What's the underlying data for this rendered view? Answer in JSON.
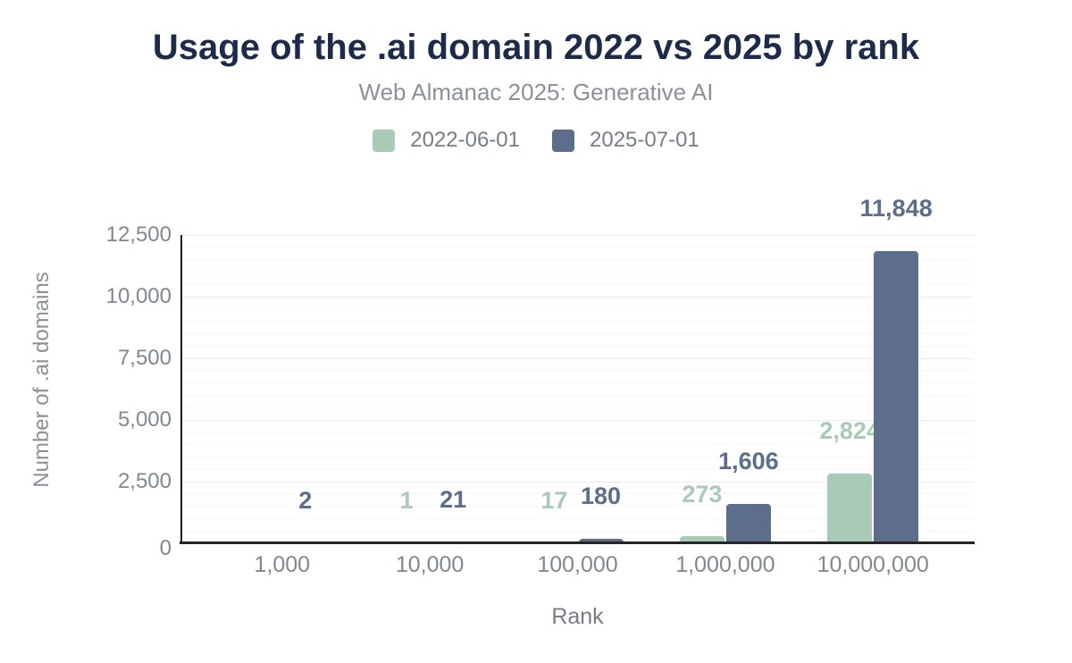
{
  "title": "Usage of the .ai domain 2022 vs 2025 by rank",
  "subtitle": "Web Almanac 2025: Generative AI",
  "legend": [
    {
      "label": "2022-06-01",
      "color": "#a9cab7"
    },
    {
      "label": "2025-07-01",
      "color": "#5c6e8b"
    }
  ],
  "colors": {
    "title": "#1c2b4a",
    "subtitle": "#8a9199",
    "axis_text": "#80888f",
    "series_2022": "#a9cab7",
    "series_2025": "#5c6e8b",
    "axis_line": "#262626",
    "grid_major": "#ececec",
    "grid_minor": "#f7f7f7"
  },
  "chart_data": {
    "type": "bar",
    "title": "Usage of the .ai domain 2022 vs 2025 by rank",
    "subtitle": "Web Almanac 2025: Generative AI",
    "categories": [
      "1,000",
      "10,000",
      "100,000",
      "1,000,000",
      "10,000,000"
    ],
    "series": [
      {
        "name": "2022-06-01",
        "color": "#a9cab7",
        "values": [
          0,
          1,
          17,
          273,
          2824
        ],
        "labels": [
          "",
          "1",
          "17",
          "273",
          "2,824"
        ]
      },
      {
        "name": "2025-07-01",
        "color": "#5c6e8b",
        "values": [
          2,
          21,
          180,
          1606,
          11848
        ],
        "labels": [
          "2",
          "21",
          "180",
          "1,606",
          "11,848"
        ]
      }
    ],
    "xlabel": "Rank",
    "ylabel": "Number of .ai domains",
    "ylim": [
      0,
      12500
    ],
    "yticks": [
      0,
      2500,
      5000,
      7500,
      10000,
      12500
    ],
    "ytick_labels": [
      "0",
      "2,500",
      "5,000",
      "7,500",
      "10,000",
      "12,500"
    ],
    "minor_grid_step": 500,
    "grid": true,
    "legend_position": "top"
  }
}
